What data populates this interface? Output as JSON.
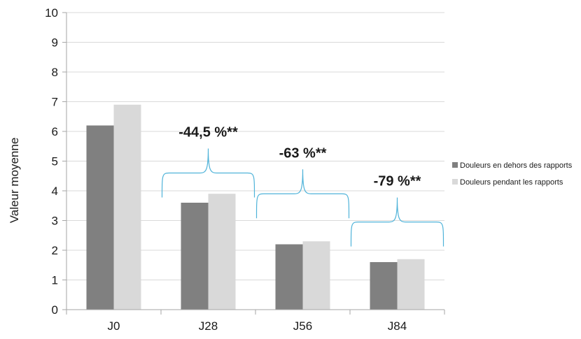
{
  "chart_data": {
    "type": "bar",
    "title": "",
    "xlabel": "",
    "ylabel": "Valeur moyenne",
    "ylim": [
      0,
      10
    ],
    "yticks": [
      0,
      1,
      2,
      3,
      4,
      5,
      6,
      7,
      8,
      9,
      10
    ],
    "grid": true,
    "legend_position": "right",
    "categories": [
      "J0",
      "J28",
      "J56",
      "J84"
    ],
    "series": [
      {
        "name": "Douleurs en dehors des rapports",
        "color": "#808080",
        "values": [
          6.2,
          3.6,
          2.2,
          1.6
        ]
      },
      {
        "name": "Douleurs pendant les rapports",
        "color": "#d9d9d9",
        "values": [
          6.9,
          3.9,
          2.3,
          1.7
        ]
      }
    ],
    "annotations": [
      {
        "category": "J28",
        "text": "-44,5 %**",
        "bracket_y": 4.6
      },
      {
        "category": "J56",
        "text": "-63 %**",
        "bracket_y": 3.9
      },
      {
        "category": "J84",
        "text": "-79 %**",
        "bracket_y": 2.95
      }
    ],
    "bracket_color": "#4fb3d9"
  }
}
